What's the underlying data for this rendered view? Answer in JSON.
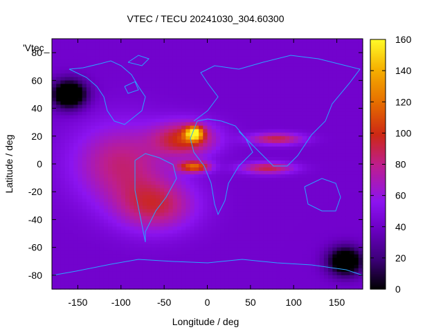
{
  "chart_data": {
    "type": "heatmap",
    "title": "VTEC / TECU 20241030_304.60300",
    "xlabel": "Longitude / deg",
    "ylabel": "Latitude / deg",
    "series_label": "'Vtec_",
    "xlim": [
      -180,
      180
    ],
    "ylim": [
      -90,
      90
    ],
    "x_ticks": [
      -150,
      -100,
      -50,
      0,
      50,
      100,
      150
    ],
    "y_ticks": [
      -80,
      -60,
      -40,
      -20,
      0,
      20,
      40,
      60,
      80
    ],
    "colorbar": {
      "range": [
        0,
        160
      ],
      "ticks": [
        0,
        20,
        40,
        60,
        80,
        100,
        120,
        140,
        160
      ],
      "colormap": "black-purple-red-yellow"
    },
    "grid": false,
    "background_tec": 42,
    "features": [
      {
        "lon": -100,
        "lat": 0,
        "tec": 90,
        "sx": 55,
        "sy": 28
      },
      {
        "lon": -25,
        "lat": 18,
        "tec": 110,
        "sx": 35,
        "sy": 12
      },
      {
        "lon": -15,
        "lat": 22,
        "tec": 150,
        "sx": 10,
        "sy": 5
      },
      {
        "lon": -15,
        "lat": -2,
        "tec": 125,
        "sx": 18,
        "sy": 4
      },
      {
        "lon": -60,
        "lat": -30,
        "tec": 95,
        "sx": 45,
        "sy": 18
      },
      {
        "lon": 80,
        "lat": 18,
        "tec": 100,
        "sx": 30,
        "sy": 4
      },
      {
        "lon": 70,
        "lat": -3,
        "tec": 100,
        "sx": 30,
        "sy": 4
      },
      {
        "lon": -160,
        "lat": 50,
        "tec": -30,
        "sx": 20,
        "sy": 10
      },
      {
        "lon": 160,
        "lat": -70,
        "tec": -25,
        "sx": 20,
        "sy": 10
      }
    ]
  }
}
